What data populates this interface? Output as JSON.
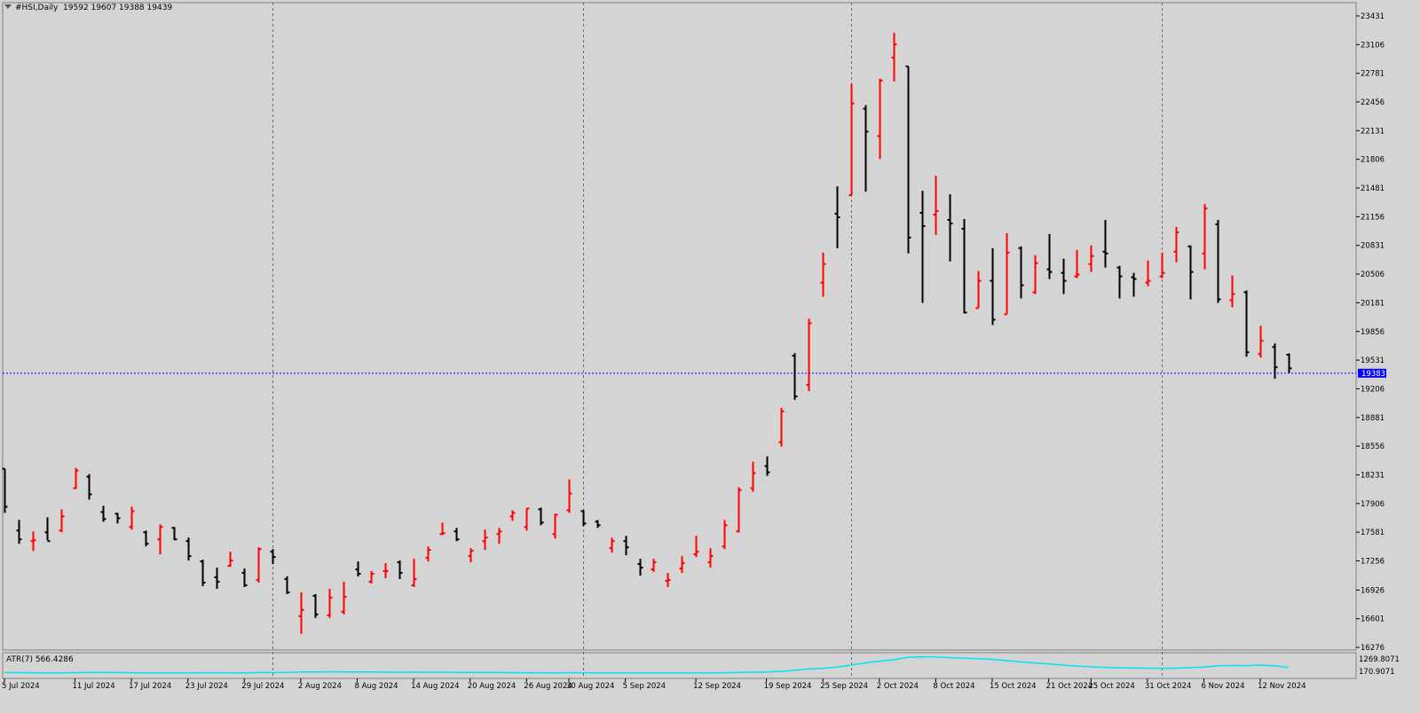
{
  "header": {
    "symbol_label": "#HSI,Daily",
    "ohlc_label": "19592 19607 19388 19439"
  },
  "indicator": {
    "label": "ATR(7) 566.4286",
    "scale_labels": [
      "1269.8071",
      "170.9071"
    ],
    "line_color": "#00e5ee",
    "max": 1269.8071,
    "min": 170.9071
  },
  "price_line": {
    "label": "19383",
    "value": 19383,
    "color": "#0000ff"
  },
  "colors": {
    "background": "#d4d4d4",
    "bull_bar": "#ff0000",
    "bear_bar": "#000000",
    "grid": "#6e6e6e"
  },
  "chart_data": {
    "type": "ohlc",
    "y_ticks": [
      23431,
      23106,
      22781,
      22456,
      22131,
      21806,
      21481,
      21156,
      20831,
      20506,
      20181,
      19856,
      19531,
      19206,
      18881,
      18556,
      18231,
      17906,
      17581,
      17256,
      16926,
      16601,
      16276
    ],
    "ylim": [
      16276,
      23431
    ],
    "x_tick_labels": [
      "5 Jul 2024",
      "11 Jul 2024",
      "17 Jul 2024",
      "23 Jul 2024",
      "29 Jul 2024",
      "2 Aug 2024",
      "8 Aug 2024",
      "14 Aug 2024",
      "20 Aug 2024",
      "26 Aug 2024",
      "30 Aug 2024",
      "5 Sep 2024",
      "12 Sep 2024",
      "19 Sep 2024",
      "25 Sep 2024",
      "2 Oct 2024",
      "8 Oct 2024",
      "15 Oct 2024",
      "21 Oct 2024",
      "25 Oct 2024",
      "31 Oct 2024",
      "6 Nov 2024",
      "12 Nov 2024"
    ],
    "x_tick_bar_index": [
      0,
      5,
      9,
      13,
      17,
      21,
      25,
      29,
      33,
      37,
      40,
      44,
      49,
      54,
      58,
      62,
      66,
      70,
      74,
      77,
      81,
      85,
      89
    ],
    "separator_bar_index": [
      19,
      41,
      60,
      82
    ],
    "bars": [
      {
        "o": 18300,
        "h": 18300,
        "l": 17800,
        "c": 17870
      },
      {
        "o": 17600,
        "h": 17720,
        "l": 17450,
        "c": 17500
      },
      {
        "o": 17480,
        "h": 17590,
        "l": 17370,
        "c": 17490
      },
      {
        "o": 17580,
        "h": 17750,
        "l": 17490,
        "c": 17480
      },
      {
        "o": 17600,
        "h": 17840,
        "l": 17580,
        "c": 17760
      },
      {
        "o": 18080,
        "h": 18310,
        "l": 18070,
        "c": 18280
      },
      {
        "o": 18210,
        "h": 18240,
        "l": 17950,
        "c": 18010
      },
      {
        "o": 17810,
        "h": 17880,
        "l": 17700,
        "c": 17730
      },
      {
        "o": 17790,
        "h": 17800,
        "l": 17680,
        "c": 17740
      },
      {
        "o": 17640,
        "h": 17870,
        "l": 17610,
        "c": 17820
      },
      {
        "o": 17580,
        "h": 17600,
        "l": 17420,
        "c": 17450
      },
      {
        "o": 17500,
        "h": 17670,
        "l": 17330,
        "c": 17640
      },
      {
        "o": 17630,
        "h": 17640,
        "l": 17490,
        "c": 17500
      },
      {
        "o": 17480,
        "h": 17520,
        "l": 17260,
        "c": 17310
      },
      {
        "o": 17250,
        "h": 17270,
        "l": 16970,
        "c": 17010
      },
      {
        "o": 17070,
        "h": 17180,
        "l": 16940,
        "c": 17020
      },
      {
        "o": 17200,
        "h": 17360,
        "l": 17190,
        "c": 17260
      },
      {
        "o": 17120,
        "h": 17170,
        "l": 16960,
        "c": 16980
      },
      {
        "o": 17040,
        "h": 17410,
        "l": 17010,
        "c": 17390
      },
      {
        "o": 17360,
        "h": 17390,
        "l": 17220,
        "c": 17300
      },
      {
        "o": 17050,
        "h": 17080,
        "l": 16880,
        "c": 16900
      },
      {
        "o": 16630,
        "h": 16900,
        "l": 16430,
        "c": 16700
      },
      {
        "o": 16860,
        "h": 16880,
        "l": 16610,
        "c": 16650
      },
      {
        "o": 16640,
        "h": 16940,
        "l": 16610,
        "c": 16840
      },
      {
        "o": 16680,
        "h": 17020,
        "l": 16650,
        "c": 16850
      },
      {
        "o": 17160,
        "h": 17250,
        "l": 17080,
        "c": 17110
      },
      {
        "o": 17020,
        "h": 17140,
        "l": 17000,
        "c": 17110
      },
      {
        "o": 17140,
        "h": 17230,
        "l": 17060,
        "c": 17140
      },
      {
        "o": 17240,
        "h": 17260,
        "l": 17050,
        "c": 17120
      },
      {
        "o": 16980,
        "h": 17280,
        "l": 16960,
        "c": 17050
      },
      {
        "o": 17290,
        "h": 17420,
        "l": 17250,
        "c": 17380
      },
      {
        "o": 17560,
        "h": 17690,
        "l": 17550,
        "c": 17570
      },
      {
        "o": 17590,
        "h": 17630,
        "l": 17480,
        "c": 17500
      },
      {
        "o": 17310,
        "h": 17400,
        "l": 17240,
        "c": 17370
      },
      {
        "o": 17480,
        "h": 17610,
        "l": 17380,
        "c": 17520
      },
      {
        "o": 17560,
        "h": 17630,
        "l": 17450,
        "c": 17590
      },
      {
        "o": 17760,
        "h": 17830,
        "l": 17710,
        "c": 17800
      },
      {
        "o": 17640,
        "h": 17850,
        "l": 17600,
        "c": 17850
      },
      {
        "o": 17840,
        "h": 17860,
        "l": 17660,
        "c": 17690
      },
      {
        "o": 17560,
        "h": 17790,
        "l": 17510,
        "c": 17780
      },
      {
        "o": 17830,
        "h": 18180,
        "l": 17800,
        "c": 18020
      },
      {
        "o": 17820,
        "h": 17830,
        "l": 17650,
        "c": 17680
      },
      {
        "o": 17700,
        "h": 17720,
        "l": 17630,
        "c": 17660
      },
      {
        "o": 17400,
        "h": 17520,
        "l": 17350,
        "c": 17480
      },
      {
        "o": 17480,
        "h": 17540,
        "l": 17320,
        "c": 17410
      },
      {
        "o": 17220,
        "h": 17280,
        "l": 17090,
        "c": 17180
      },
      {
        "o": 17160,
        "h": 17280,
        "l": 17130,
        "c": 17240
      },
      {
        "o": 17030,
        "h": 17120,
        "l": 16960,
        "c": 17040
      },
      {
        "o": 17170,
        "h": 17310,
        "l": 17120,
        "c": 17230
      },
      {
        "o": 17330,
        "h": 17540,
        "l": 17300,
        "c": 17360
      },
      {
        "o": 17240,
        "h": 17400,
        "l": 17180,
        "c": 17310
      },
      {
        "o": 17420,
        "h": 17720,
        "l": 17390,
        "c": 17660
      },
      {
        "o": 17590,
        "h": 18090,
        "l": 17580,
        "c": 18060
      },
      {
        "o": 18080,
        "h": 18380,
        "l": 18040,
        "c": 18250
      },
      {
        "o": 18330,
        "h": 18440,
        "l": 18220,
        "c": 18260
      },
      {
        "o": 18600,
        "h": 18990,
        "l": 18550,
        "c": 18950
      },
      {
        "o": 19580,
        "h": 19610,
        "l": 19080,
        "c": 19120
      },
      {
        "o": 19250,
        "h": 20000,
        "l": 19180,
        "c": 19950
      },
      {
        "o": 20410,
        "h": 20750,
        "l": 20250,
        "c": 20620
      },
      {
        "o": 21190,
        "h": 21500,
        "l": 20800,
        "c": 21150
      },
      {
        "o": 21400,
        "h": 22660,
        "l": 21400,
        "c": 22440
      },
      {
        "o": 22380,
        "h": 22420,
        "l": 21440,
        "c": 22120
      },
      {
        "o": 22070,
        "h": 22720,
        "l": 21810,
        "c": 22700
      },
      {
        "o": 22960,
        "h": 23240,
        "l": 22690,
        "c": 23110
      },
      {
        "o": 22860,
        "h": 22860,
        "l": 20740,
        "c": 20920
      },
      {
        "o": 21200,
        "h": 21450,
        "l": 20180,
        "c": 21050
      },
      {
        "o": 21180,
        "h": 21620,
        "l": 20950,
        "c": 21220
      },
      {
        "o": 21120,
        "h": 21410,
        "l": 20650,
        "c": 21080
      },
      {
        "o": 21020,
        "h": 21130,
        "l": 20060,
        "c": 20070
      },
      {
        "o": 20120,
        "h": 20540,
        "l": 20120,
        "c": 20430
      },
      {
        "o": 20430,
        "h": 20800,
        "l": 19930,
        "c": 19990
      },
      {
        "o": 20050,
        "h": 20970,
        "l": 20050,
        "c": 20750
      },
      {
        "o": 20800,
        "h": 20820,
        "l": 20230,
        "c": 20380
      },
      {
        "o": 20300,
        "h": 20720,
        "l": 20280,
        "c": 20630
      },
      {
        "o": 20560,
        "h": 20960,
        "l": 20450,
        "c": 20530
      },
      {
        "o": 20520,
        "h": 20680,
        "l": 20280,
        "c": 20430
      },
      {
        "o": 20480,
        "h": 20780,
        "l": 20460,
        "c": 20500
      },
      {
        "o": 20620,
        "h": 20830,
        "l": 20530,
        "c": 20710
      },
      {
        "o": 20760,
        "h": 21120,
        "l": 20580,
        "c": 20740
      },
      {
        "o": 20580,
        "h": 20600,
        "l": 20230,
        "c": 20480
      },
      {
        "o": 20470,
        "h": 20520,
        "l": 20250,
        "c": 20450
      },
      {
        "o": 20410,
        "h": 20660,
        "l": 20370,
        "c": 20430
      },
      {
        "o": 20480,
        "h": 20750,
        "l": 20460,
        "c": 20520
      },
      {
        "o": 20760,
        "h": 21040,
        "l": 20640,
        "c": 20980
      },
      {
        "o": 20820,
        "h": 20830,
        "l": 20220,
        "c": 20530
      },
      {
        "o": 20740,
        "h": 21300,
        "l": 20560,
        "c": 21250
      },
      {
        "o": 21070,
        "h": 21120,
        "l": 20180,
        "c": 20220
      },
      {
        "o": 20210,
        "h": 20490,
        "l": 20130,
        "c": 20280
      },
      {
        "o": 20300,
        "h": 20320,
        "l": 19570,
        "c": 19620
      },
      {
        "o": 19600,
        "h": 19920,
        "l": 19560,
        "c": 19750
      },
      {
        "o": 19680,
        "h": 19720,
        "l": 19320,
        "c": 19450
      },
      {
        "o": 19592,
        "h": 19607,
        "l": 19388,
        "c": 19439
      }
    ],
    "atr_values": [
      260,
      255,
      250,
      245,
      240,
      255,
      270,
      265,
      258,
      250,
      245,
      240,
      238,
      245,
      250,
      248,
      245,
      240,
      260,
      258,
      262,
      290,
      300,
      305,
      300,
      298,
      292,
      285,
      280,
      285,
      280,
      275,
      270,
      265,
      262,
      258,
      255,
      250,
      248,
      245,
      255,
      250,
      245,
      240,
      238,
      242,
      240,
      238,
      236,
      240,
      245,
      250,
      270,
      280,
      290,
      330,
      400,
      480,
      520,
      600,
      720,
      860,
      960,
      1050,
      1200,
      1240,
      1220,
      1180,
      1150,
      1120,
      1080,
      1000,
      920,
      860,
      800,
      720,
      660,
      610,
      580,
      560,
      540,
      530,
      525,
      530,
      560,
      600,
      680,
      700,
      690,
      720,
      680,
      566
    ]
  }
}
